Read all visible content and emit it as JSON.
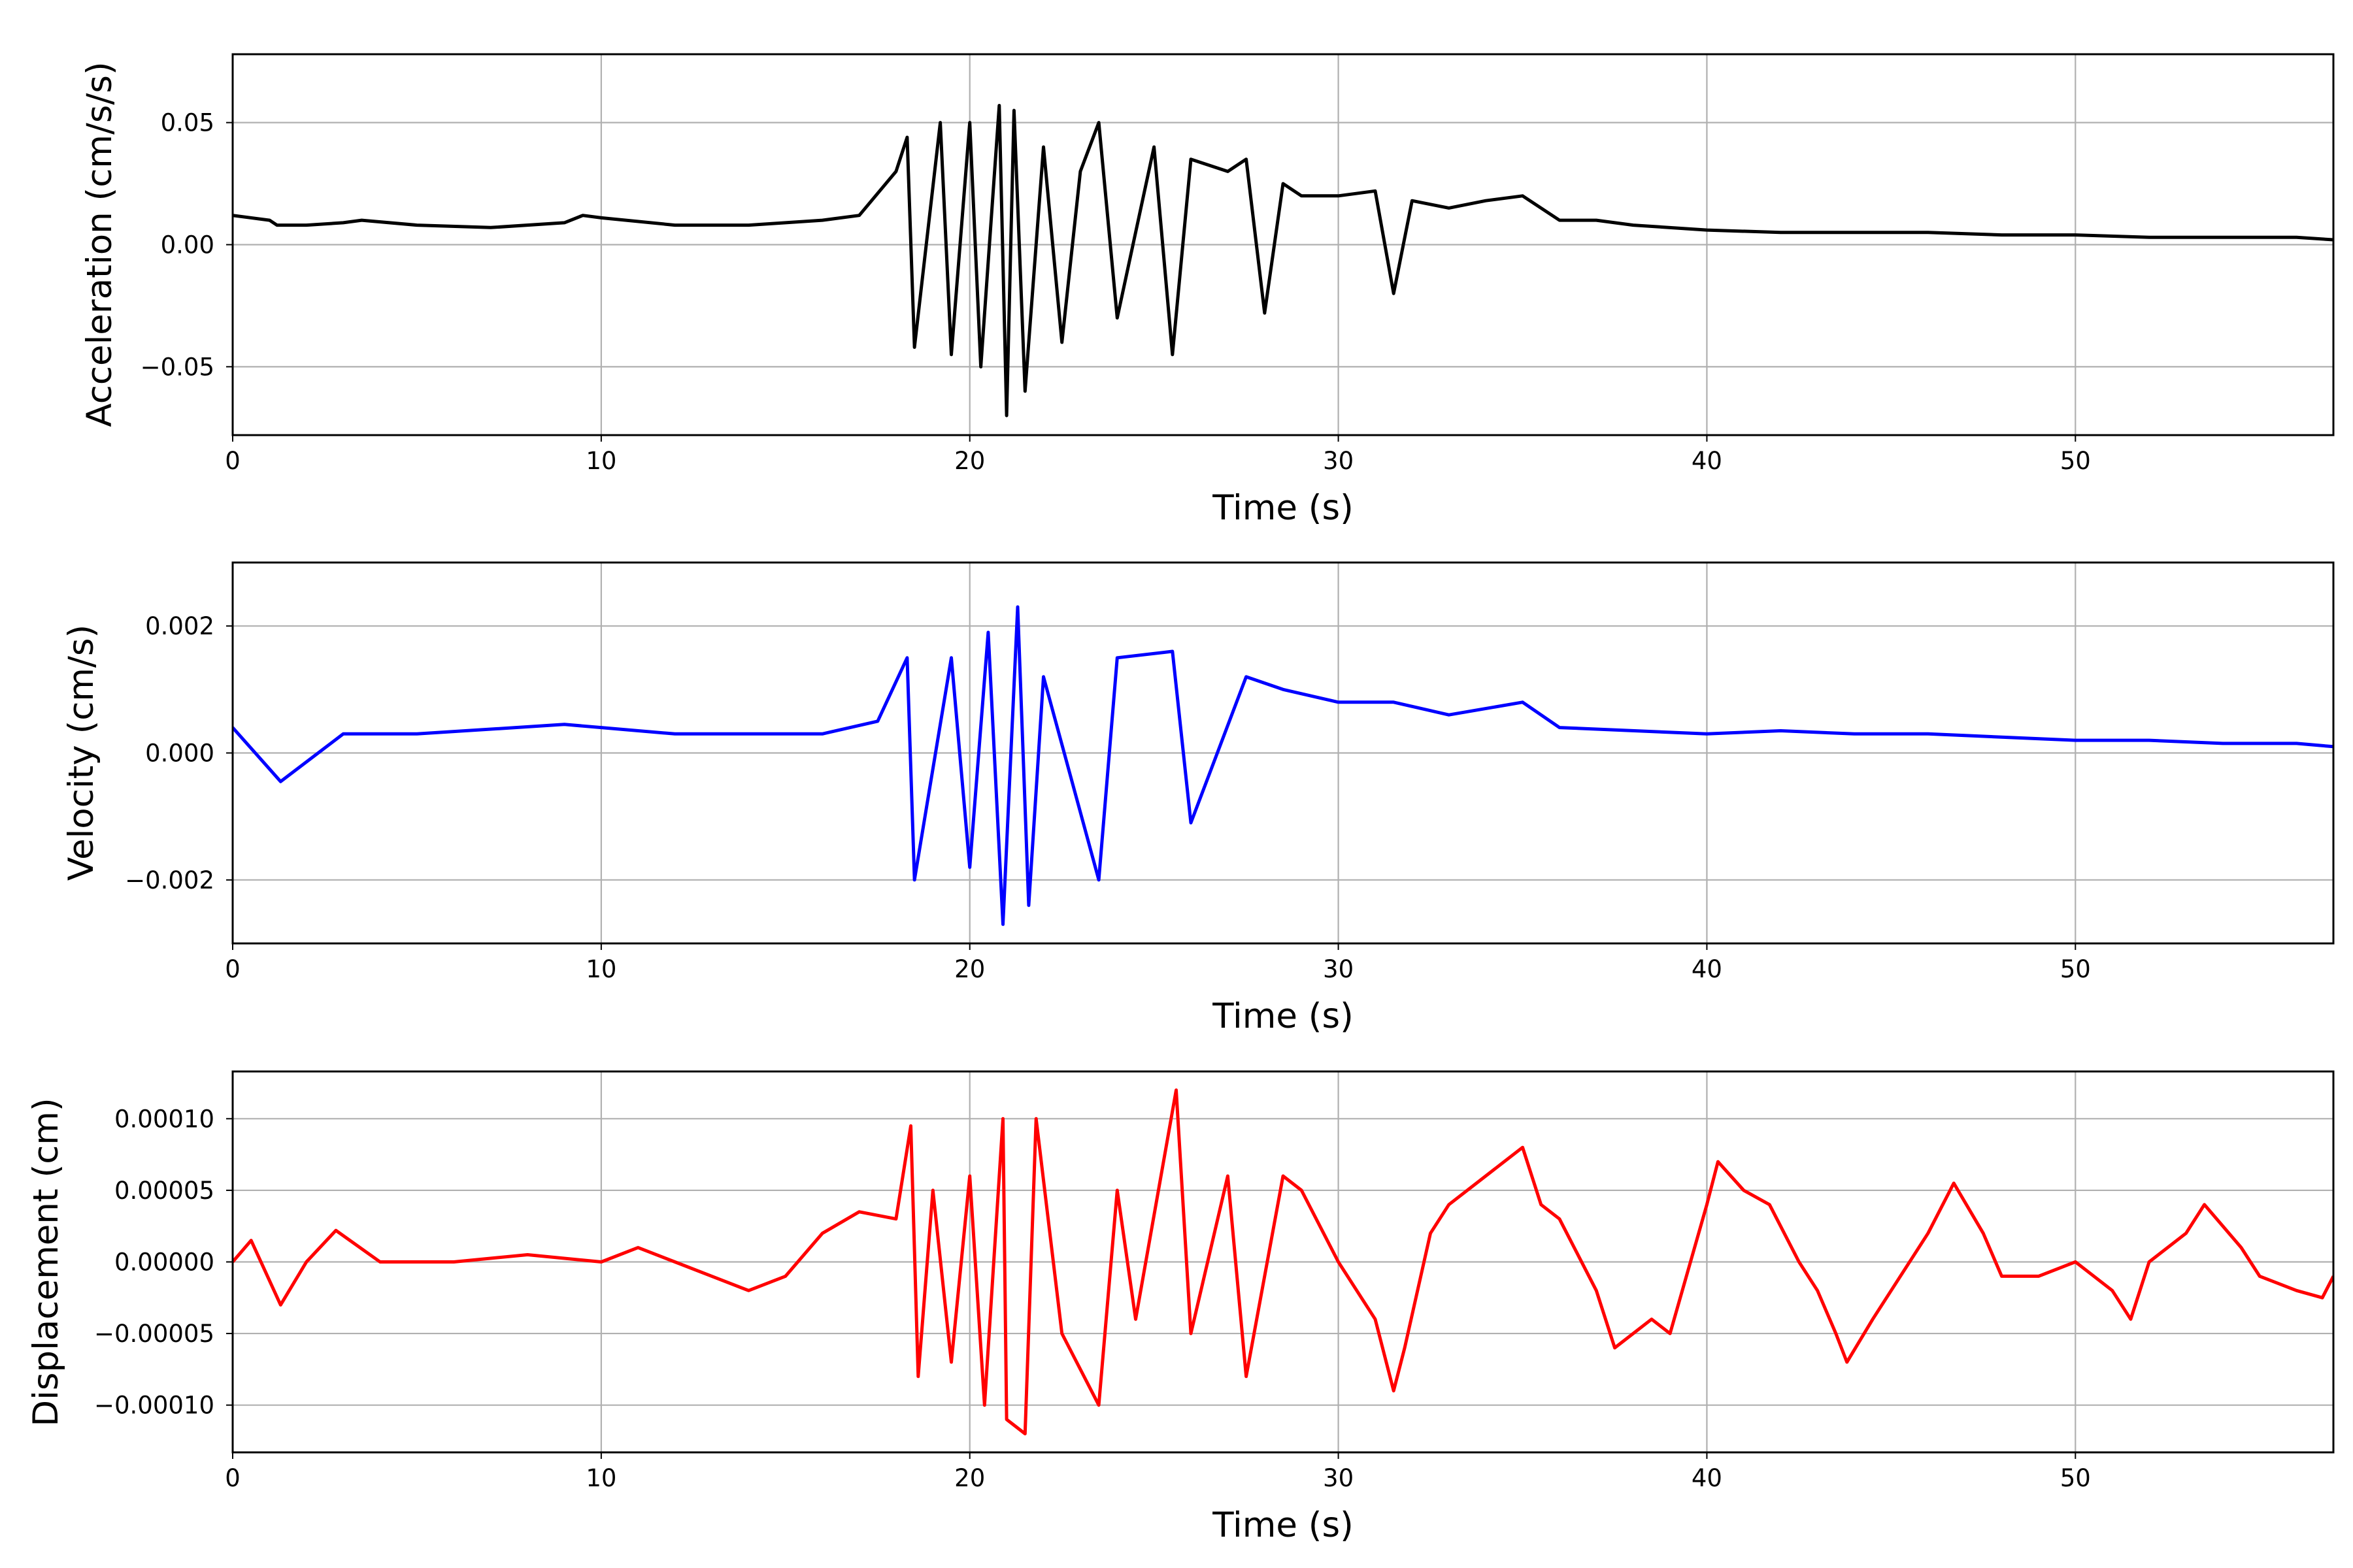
{
  "chart_data": [
    {
      "type": "line",
      "id": "acceleration",
      "xlabel": "Time (s)",
      "ylabel": "Acceleration (cm/s/s)",
      "xlim": [
        0,
        57
      ],
      "ylim": [
        -0.078,
        0.078
      ],
      "xticks": [
        0,
        10,
        20,
        30,
        40,
        50
      ],
      "yticks": [
        -0.05,
        0.0,
        0.05
      ],
      "xtick_labels": [
        "0",
        "10",
        "20",
        "30",
        "40",
        "50"
      ],
      "ytick_labels": [
        "−0.05",
        "0.00",
        "0.05"
      ],
      "grid": true,
      "line_color": "#000000",
      "series": [
        {
          "x": [
            0,
            1,
            1.2,
            2,
            3,
            3.5,
            5,
            7,
            9,
            9.5,
            10,
            12,
            14,
            16,
            17,
            18,
            18.3,
            18.5,
            19.2,
            19.5,
            20,
            20.3,
            20.8,
            21,
            21.2,
            21.5,
            22,
            22.5,
            23,
            23.5,
            24,
            25,
            25.5,
            26,
            27,
            27.5,
            28,
            28.5,
            29,
            30,
            31,
            31.5,
            32,
            33,
            34,
            35,
            36,
            37,
            38,
            40,
            42,
            44,
            46,
            48,
            50,
            52,
            54,
            56,
            57
          ],
          "y": [
            0.012,
            0.01,
            0.008,
            0.008,
            0.009,
            0.01,
            0.008,
            0.007,
            0.009,
            0.012,
            0.011,
            0.008,
            0.008,
            0.01,
            0.012,
            0.03,
            0.044,
            -0.042,
            0.05,
            -0.045,
            0.05,
            -0.05,
            0.057,
            -0.07,
            0.055,
            -0.06,
            0.04,
            -0.04,
            0.03,
            0.05,
            -0.03,
            0.04,
            -0.045,
            0.035,
            0.03,
            0.035,
            -0.028,
            0.025,
            0.02,
            0.02,
            0.022,
            -0.02,
            0.018,
            0.015,
            0.018,
            0.02,
            0.01,
            0.01,
            0.008,
            0.006,
            0.005,
            0.005,
            0.005,
            0.004,
            0.004,
            0.003,
            0.003,
            0.003,
            0.002
          ]
        }
      ]
    },
    {
      "type": "line",
      "id": "velocity",
      "xlabel": "Time (s)",
      "ylabel": "Velocity (cm/s)",
      "xlim": [
        0,
        57
      ],
      "ylim": [
        -0.003,
        0.003
      ],
      "xticks": [
        0,
        10,
        20,
        30,
        40,
        50
      ],
      "yticks": [
        -0.002,
        0.0,
        0.002
      ],
      "xtick_labels": [
        "0",
        "10",
        "20",
        "30",
        "40",
        "50"
      ],
      "ytick_labels": [
        "−0.002",
        "0.000",
        "0.002"
      ],
      "grid": true,
      "line_color": "#0000ff",
      "series": [
        {
          "x": [
            0,
            1.3,
            3,
            5,
            9,
            10,
            12,
            14,
            16,
            17.5,
            18.3,
            18.5,
            19.5,
            20,
            20.5,
            20.9,
            21.3,
            21.6,
            22,
            23.5,
            24,
            25.5,
            26,
            27.5,
            28.5,
            30,
            31.5,
            33,
            35,
            36,
            40,
            42,
            44,
            46,
            48,
            50,
            52,
            54,
            56,
            57
          ],
          "y": [
            0.0004,
            -0.00045,
            0.0003,
            0.0003,
            0.00045,
            0.0004,
            0.0003,
            0.0003,
            0.0003,
            0.0005,
            0.0015,
            -0.002,
            0.0015,
            -0.0018,
            0.0019,
            -0.0027,
            0.0023,
            -0.0024,
            0.0012,
            -0.002,
            0.0015,
            0.0016,
            -0.0011,
            0.0012,
            0.001,
            0.0008,
            0.0008,
            0.0006,
            0.0008,
            0.0004,
            0.0003,
            0.00035,
            0.0003,
            0.0003,
            0.00025,
            0.0002,
            0.0002,
            0.00015,
            0.00015,
            0.0001
          ]
        }
      ]
    },
    {
      "type": "line",
      "id": "displacement",
      "xlabel": "Time (s)",
      "ylabel": "Displacement (cm)",
      "xlim": [
        0,
        57
      ],
      "ylim": [
        -0.000133,
        0.000133
      ],
      "xticks": [
        0,
        10,
        20,
        30,
        40,
        50
      ],
      "yticks": [
        -0.0001,
        -5e-05,
        0.0,
        5e-05,
        0.0001
      ],
      "xtick_labels": [
        "0",
        "10",
        "20",
        "30",
        "40",
        "50"
      ],
      "ytick_labels": [
        "−0.00010",
        "−0.00005",
        "0.00000",
        "0.00005",
        "0.00010"
      ],
      "grid": true,
      "line_color": "#ff0000",
      "series": [
        {
          "x": [
            0,
            0.5,
            1.3,
            2,
            2.8,
            4,
            6,
            8,
            10,
            11,
            12,
            13,
            14,
            15,
            16,
            17,
            18,
            18.4,
            18.6,
            19,
            19.5,
            20,
            20.4,
            20.9,
            21,
            21.5,
            21.8,
            22.5,
            23.5,
            24,
            24.5,
            25.6,
            26,
            27,
            27.5,
            28.5,
            29,
            30,
            31,
            31.5,
            31.8,
            32.5,
            33,
            34,
            35,
            35.5,
            36,
            37,
            37.5,
            38.5,
            39,
            40,
            40.3,
            41,
            41.7,
            42.5,
            43,
            43.5,
            43.8,
            44.5,
            45,
            46,
            46.7,
            47.5,
            48,
            49,
            50,
            51,
            51.5,
            52,
            53,
            53.5,
            54.5,
            55,
            56,
            56.7,
            57
          ],
          "y": [
            0.0,
            1.5e-05,
            -3e-05,
            0.0,
            2.2e-05,
            0.0,
            0.0,
            5e-06,
            0.0,
            1e-05,
            0.0,
            -1e-05,
            -2e-05,
            -1e-05,
            2e-05,
            3.5e-05,
            3e-05,
            9.5e-05,
            -8e-05,
            5e-05,
            -7e-05,
            6e-05,
            -0.0001,
            0.0001,
            -0.00011,
            -0.00012,
            0.0001,
            -5e-05,
            -0.0001,
            5e-05,
            -4e-05,
            0.00012,
            -5e-05,
            6e-05,
            -8e-05,
            6e-05,
            5e-05,
            0.0,
            -4e-05,
            -9e-05,
            -6e-05,
            2e-05,
            4e-05,
            6e-05,
            8e-05,
            4e-05,
            3e-05,
            -2e-05,
            -6e-05,
            -4e-05,
            -5e-05,
            4e-05,
            7e-05,
            5e-05,
            4e-05,
            0.0,
            -2e-05,
            -5e-05,
            -7e-05,
            -4e-05,
            -2e-05,
            2e-05,
            5.5e-05,
            2e-05,
            -1e-05,
            -1e-05,
            0.0,
            -2e-05,
            -4e-05,
            0.0,
            2e-05,
            4e-05,
            1e-05,
            -1e-05,
            -2e-05,
            -2.5e-05,
            -1e-05
          ]
        }
      ]
    }
  ]
}
